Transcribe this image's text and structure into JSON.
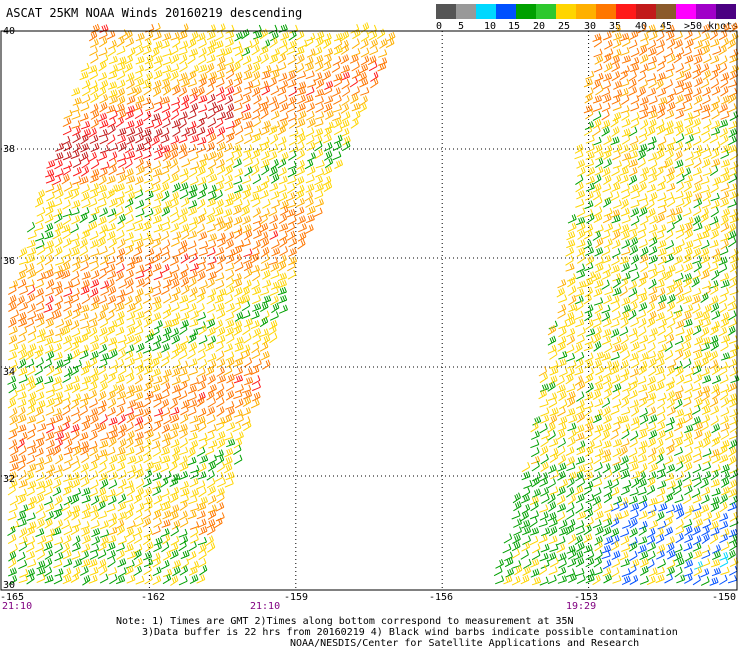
{
  "title": "ASCAT 25KM NOAA Winds 20160219 descending",
  "legend": {
    "colors": [
      "#555555",
      "#999999",
      "#00d8ff",
      "#0050ff",
      "#00a000",
      "#2ec82e",
      "#ffd500",
      "#ffb000",
      "#ff7700",
      "#ff1a1a",
      "#c21a1a",
      "#8b5a2b",
      "#ff00ff",
      "#a000c8",
      "#4b0082"
    ],
    "labels": [
      "0",
      "5",
      "10",
      "15",
      "20",
      "25",
      "30",
      "35",
      "40",
      "45",
      ">50 knots"
    ]
  },
  "map": {
    "lat_labels": [
      "40",
      "38",
      "36",
      "34",
      "32",
      "30"
    ],
    "lon_labels": [
      "-165",
      "-162",
      "-159",
      "-156",
      "-153",
      "-150"
    ],
    "time_labels": [
      "21:10",
      "21:10",
      "19:29"
    ]
  },
  "notes": {
    "line1": "Note: 1) Times are GMT 2)Times along bottom correspond to measurement at 35N",
    "line2": "3)Data buffer is 22 hrs from 20160219 4) Black wind barbs indicate possible contamination",
    "line3": "NOAA/NESDIS/Center for Satellite Applications and Research"
  }
}
